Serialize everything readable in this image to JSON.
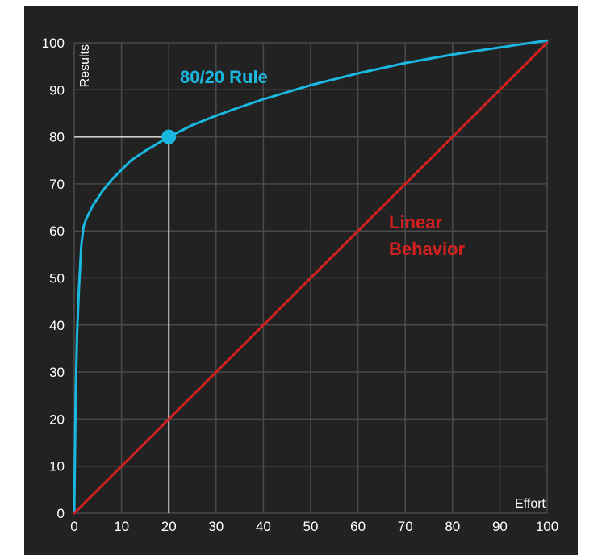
{
  "chart_data": {
    "type": "line",
    "xlabel": "Effort",
    "ylabel": "Results",
    "xlim": [
      0,
      100
    ],
    "ylim": [
      0,
      100
    ],
    "grid": true,
    "x_ticks": [
      "0",
      "10",
      "20",
      "30",
      "40",
      "50",
      "60",
      "70",
      "80",
      "90",
      "100"
    ],
    "y_ticks": [
      "0",
      "10",
      "20",
      "30",
      "40",
      "50",
      "60",
      "70",
      "80",
      "90",
      "100"
    ],
    "series": [
      {
        "color": "#1ab8e0",
        "x": [
          0,
          0.3,
          0.6,
          1,
          1.5,
          2,
          2.5,
          3,
          4,
          5,
          6,
          8,
          10,
          12,
          15,
          20,
          25,
          30,
          35,
          40,
          50,
          60,
          70,
          80,
          90,
          100
        ],
        "y": [
          0,
          25,
          38,
          48,
          57,
          61,
          62.5,
          63.5,
          65.5,
          67,
          68.5,
          71,
          73,
          75,
          77,
          80,
          82.5,
          84.5,
          86.3,
          88,
          91,
          93.5,
          95.7,
          97.5,
          99,
          100.5
        ]
      },
      {
        "color": "#d42020",
        "x": [
          0,
          100
        ],
        "y": [
          0,
          100
        ]
      }
    ],
    "highlight_point": {
      "x": 20,
      "y": 80,
      "color": "#1ab8e0"
    },
    "annotations": [
      {
        "text": "80/20 Rule",
        "color": "#1ab8e0"
      },
      {
        "text": "Linear",
        "color": "#d42020"
      },
      {
        "text": "Behavior",
        "color": "#d42020"
      }
    ]
  },
  "colors": {
    "background": "#222222",
    "grid": "#4a4a4a",
    "guide": "#cccccc",
    "text": "#ffffff"
  }
}
